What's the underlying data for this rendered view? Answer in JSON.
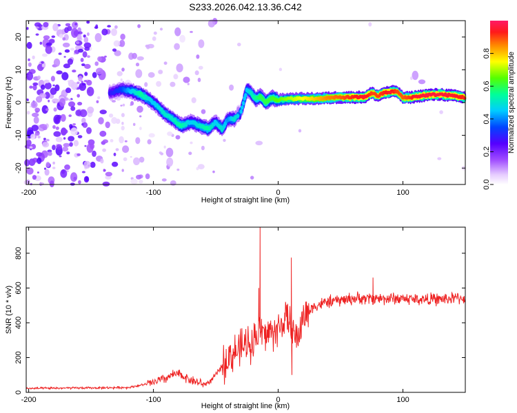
{
  "title": "S233.2026.042.13.36.C42",
  "chart_data": [
    {
      "type": "heatmap",
      "name": "spectrogram",
      "xlabel": "Height of straight line (km)",
      "ylabel": "Frequency (Hz)",
      "xlim": [
        -202,
        150
      ],
      "ylim": [
        -25,
        25
      ],
      "xticks": [
        -200,
        -100,
        0,
        100
      ],
      "yticks": [
        -20,
        -10,
        0,
        10,
        20
      ],
      "colorbar": {
        "label": "Normalized spectral amplitude",
        "range": [
          0,
          1
        ],
        "ticks": [
          "0.0",
          "0.2",
          "0.4",
          "0.6",
          "0.8"
        ],
        "tick_values": [
          0.0,
          0.2,
          0.4,
          0.6,
          0.8
        ]
      },
      "colorscale": [
        {
          "v": 0.0,
          "color": "#ffffff"
        },
        {
          "v": 0.06,
          "color": "#e6ccff"
        },
        {
          "v": 0.15,
          "color": "#a04dff"
        },
        {
          "v": 0.25,
          "color": "#5500ff"
        },
        {
          "v": 0.35,
          "color": "#0044ff"
        },
        {
          "v": 0.45,
          "color": "#00ccff"
        },
        {
          "v": 0.55,
          "color": "#00ff99"
        },
        {
          "v": 0.65,
          "color": "#55ff00"
        },
        {
          "v": 0.75,
          "color": "#ffff00"
        },
        {
          "v": 0.85,
          "color": "#ff8800"
        },
        {
          "v": 0.93,
          "color": "#ff1a1a"
        },
        {
          "v": 1.0,
          "color": "#ff1a66"
        }
      ],
      "ridge": {
        "x": [
          -135,
          -125,
          -118,
          -110,
          -100,
          -92,
          -85,
          -78,
          -70,
          -63,
          -56,
          -50,
          -45,
          -40,
          -35,
          -30,
          -25,
          -22,
          -18,
          -14,
          -10,
          -5,
          0,
          10,
          20,
          30,
          40,
          50,
          60,
          70,
          75,
          80,
          85,
          90,
          95,
          100,
          105,
          110,
          120,
          130,
          140,
          150
        ],
        "freq": [
          3,
          4,
          3.5,
          2.5,
          0,
          -3,
          -5,
          -7,
          -6,
          -7,
          -8,
          -6,
          -8,
          -5,
          -5,
          -3,
          4,
          3,
          1,
          2,
          0,
          1.5,
          0.8,
          1.2,
          1.2,
          1.2,
          1.4,
          1.6,
          1.6,
          1.7,
          3,
          2,
          3,
          3.2,
          3.5,
          1.5,
          1.5,
          1.8,
          2.3,
          2.5,
          2.1,
          1.5
        ],
        "amp": [
          0.28,
          0.35,
          0.45,
          0.55,
          0.45,
          0.5,
          0.5,
          0.55,
          0.45,
          0.5,
          0.55,
          0.45,
          0.5,
          0.4,
          0.5,
          0.45,
          0.45,
          0.5,
          0.55,
          0.6,
          0.6,
          0.62,
          0.65,
          0.7,
          0.75,
          0.8,
          0.85,
          0.88,
          0.92,
          0.95,
          0.9,
          0.9,
          0.92,
          0.95,
          0.9,
          0.88,
          0.9,
          0.95,
          0.96,
          0.96,
          0.95,
          0.92
        ]
      }
    },
    {
      "type": "line",
      "name": "snr",
      "xlabel": "Height of straight line (km)",
      "ylabel": "SNR (10 * v/v)",
      "xlim": [
        -202,
        150
      ],
      "ylim": [
        0,
        950
      ],
      "xticks": [
        -200,
        -100,
        0,
        100
      ],
      "yticks": [
        0,
        200,
        400,
        600,
        800
      ],
      "color": "#ee2222",
      "series": [
        {
          "name": "SNR",
          "x": [
            -202,
            -180,
            -160,
            -140,
            -120,
            -100,
            -95,
            -90,
            -85,
            -80,
            -75,
            -70,
            -65,
            -60,
            -55,
            -50,
            -45,
            -40,
            -35,
            -30,
            -25,
            -20,
            -15,
            -10,
            -5,
            0,
            5,
            10,
            15,
            20,
            25,
            30,
            40,
            50,
            60,
            70,
            80,
            90,
            100,
            110,
            120,
            130,
            140,
            150
          ],
          "y": [
            22,
            24,
            25,
            26,
            28,
            55,
            70,
            80,
            100,
            105,
            90,
            70,
            60,
            45,
            60,
            100,
            150,
            200,
            230,
            250,
            280,
            300,
            350,
            330,
            350,
            360,
            420,
            380,
            300,
            430,
            470,
            500,
            520,
            530,
            540,
            540,
            540,
            540,
            540,
            535,
            535,
            535,
            540,
            545
          ]
        }
      ],
      "spikes": [
        {
          "x": -14.5,
          "y": 950
        },
        {
          "x": -15.5,
          "y": 600
        },
        {
          "x": 10.5,
          "y": 775
        },
        {
          "x": 11,
          "y": 100
        },
        {
          "x": 76,
          "y": 660
        },
        {
          "x": 78,
          "y": 560
        }
      ]
    }
  ]
}
